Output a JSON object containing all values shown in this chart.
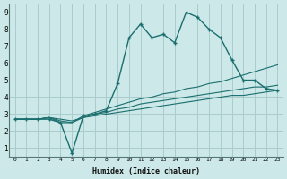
{
  "xlabel": "Humidex (Indice chaleur)",
  "bg_color": "#cce8e8",
  "grid_color": "#aacccc",
  "line_color": "#1a6e6e",
  "xlim": [
    -0.5,
    23.5
  ],
  "ylim": [
    0.5,
    9.5
  ],
  "xticks": [
    0,
    1,
    2,
    3,
    4,
    5,
    6,
    7,
    8,
    9,
    10,
    11,
    12,
    13,
    14,
    15,
    16,
    17,
    18,
    19,
    20,
    21,
    22,
    23
  ],
  "yticks": [
    1,
    2,
    3,
    4,
    5,
    6,
    7,
    8,
    9
  ],
  "series": [
    {
      "x": [
        0,
        1,
        2,
        3,
        4,
        5,
        6,
        7,
        8,
        9,
        10,
        11,
        12,
        13,
        14,
        15,
        16,
        17,
        18,
        19,
        20,
        21,
        22,
        23
      ],
      "y": [
        2.7,
        2.7,
        2.7,
        2.7,
        2.5,
        0.7,
        2.9,
        3.0,
        3.2,
        4.8,
        7.5,
        8.3,
        7.5,
        7.7,
        7.2,
        9.0,
        8.7,
        8.0,
        7.5,
        6.2,
        5.0,
        5.0,
        4.5,
        4.4
      ],
      "marker": true,
      "linewidth": 1.0
    },
    {
      "x": [
        0,
        1,
        2,
        3,
        4,
        5,
        6,
        7,
        8,
        9,
        10,
        11,
        12,
        13,
        14,
        15,
        16,
        17,
        18,
        19,
        20,
        21,
        22,
        23
      ],
      "y": [
        2.7,
        2.7,
        2.7,
        2.8,
        2.5,
        2.5,
        2.9,
        3.1,
        3.3,
        3.5,
        3.7,
        3.9,
        4.0,
        4.2,
        4.3,
        4.5,
        4.6,
        4.8,
        4.9,
        5.1,
        5.3,
        5.5,
        5.7,
        5.9
      ],
      "marker": false,
      "linewidth": 0.8
    },
    {
      "x": [
        0,
        1,
        2,
        3,
        4,
        5,
        6,
        7,
        8,
        9,
        10,
        11,
        12,
        13,
        14,
        15,
        16,
        17,
        18,
        19,
        20,
        21,
        22,
        23
      ],
      "y": [
        2.7,
        2.7,
        2.7,
        2.8,
        2.7,
        2.6,
        2.8,
        3.0,
        3.1,
        3.3,
        3.4,
        3.6,
        3.7,
        3.8,
        3.9,
        4.0,
        4.1,
        4.2,
        4.3,
        4.4,
        4.5,
        4.6,
        4.6,
        4.7
      ],
      "marker": false,
      "linewidth": 0.8
    },
    {
      "x": [
        0,
        1,
        2,
        3,
        4,
        5,
        6,
        7,
        8,
        9,
        10,
        11,
        12,
        13,
        14,
        15,
        16,
        17,
        18,
        19,
        20,
        21,
        22,
        23
      ],
      "y": [
        2.7,
        2.7,
        2.7,
        2.8,
        2.6,
        2.5,
        2.8,
        2.9,
        3.0,
        3.1,
        3.2,
        3.3,
        3.4,
        3.5,
        3.6,
        3.7,
        3.8,
        3.9,
        4.0,
        4.1,
        4.1,
        4.2,
        4.3,
        4.4
      ],
      "marker": false,
      "linewidth": 0.8
    }
  ]
}
